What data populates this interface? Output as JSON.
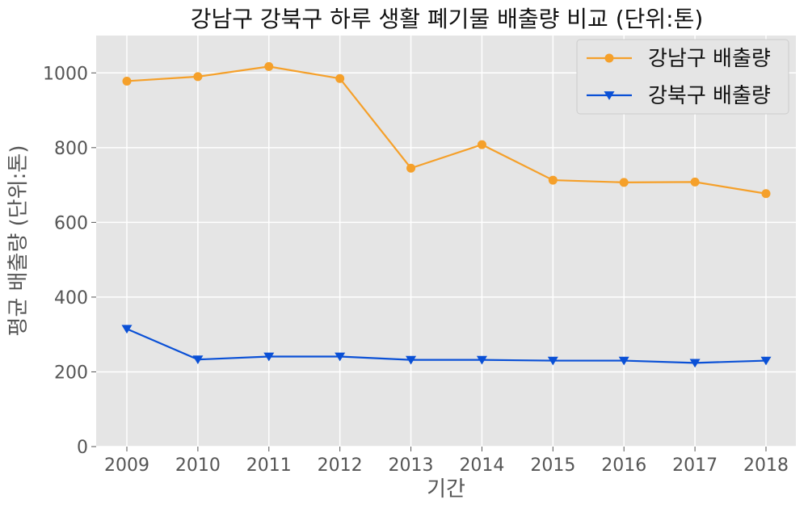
{
  "chart_data": {
    "type": "line",
    "title": "강남구 강북구 하루 생활 폐기물 배출량 비교 (단위:톤)",
    "xlabel": "기간",
    "ylabel": "평균 배출량 (단위:톤)",
    "categories": [
      "2009",
      "2010",
      "2011",
      "2012",
      "2013",
      "2014",
      "2015",
      "2016",
      "2017",
      "2018"
    ],
    "ylim": [
      0,
      1100
    ],
    "yticks": [
      0,
      200,
      400,
      600,
      800,
      1000
    ],
    "grid": true,
    "legend_position": "top-right",
    "series": [
      {
        "name": "강남구 배출량",
        "color": "#f5a02a",
        "marker": "circle",
        "values": [
          978,
          990,
          1017,
          985,
          745,
          808,
          713,
          707,
          708,
          677
        ]
      },
      {
        "name": "강북구 배출량",
        "color": "#0a50d6",
        "marker": "triangle-down",
        "values": [
          315,
          233,
          241,
          241,
          232,
          232,
          230,
          230,
          224,
          230
        ]
      }
    ]
  }
}
